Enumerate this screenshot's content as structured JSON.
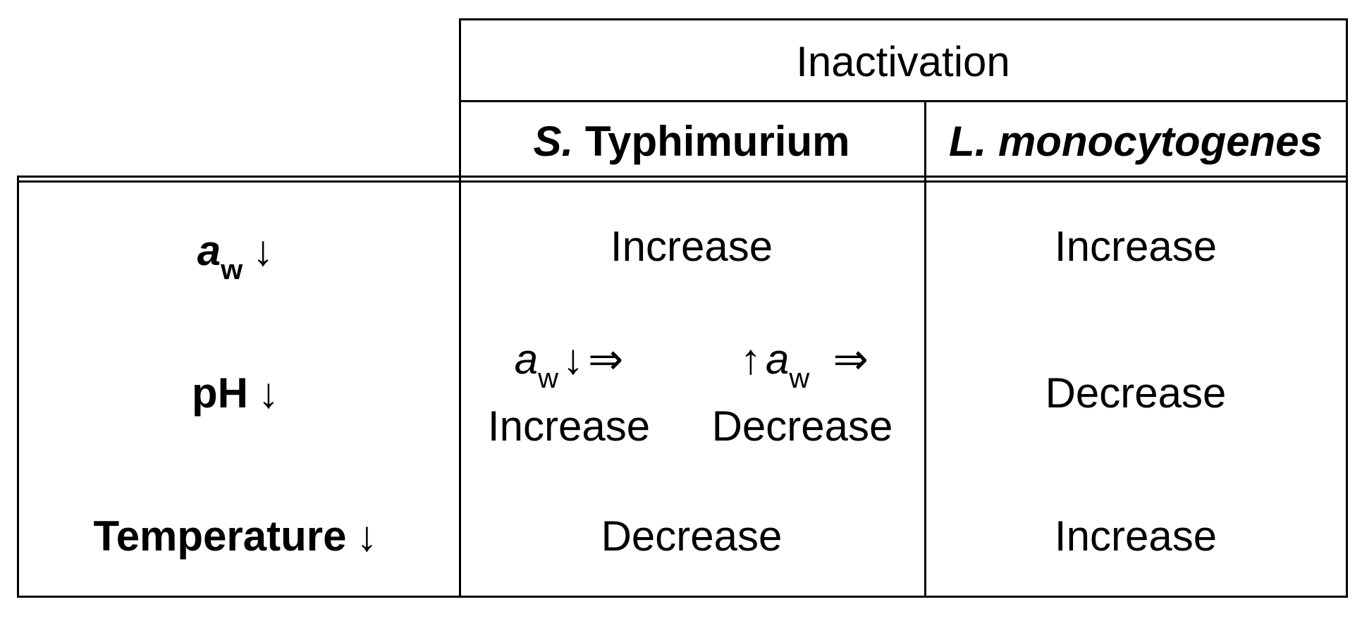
{
  "header": {
    "group_label": "Inactivation",
    "col1_species_abbrev": "S.",
    "col1_species_name": "Typhimurium",
    "col2_species": "L. monocytogenes"
  },
  "rows": [
    {
      "factor_symbol": "a",
      "factor_subscript": "w",
      "factor_arrow": "↓",
      "col1": "Increase",
      "col2": "Increase"
    },
    {
      "factor_label": "pH",
      "factor_arrow": "↓",
      "col1_sub_left": {
        "symbol": "a",
        "subscript": "w",
        "arrow": "↓",
        "implies": "⇒",
        "result": "Increase"
      },
      "col1_sub_right": {
        "arrow": "↑",
        "symbol": "a",
        "subscript": "w",
        "implies": "⇒",
        "result": "Decrease"
      },
      "col2": "Decrease"
    },
    {
      "factor_label": "Temperature",
      "factor_arrow": "↓",
      "col1": "Decrease",
      "col2": "Increase"
    }
  ]
}
